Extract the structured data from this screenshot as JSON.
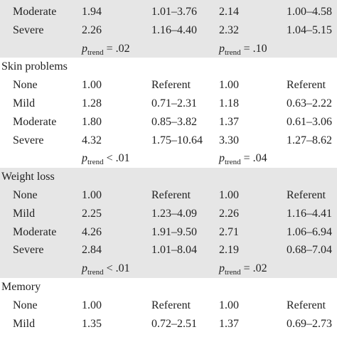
{
  "table": {
    "groups": [
      {
        "rows": [
          [
            "Moderate",
            "1.94",
            "1.01–3.76",
            "2.14",
            "1.00–4.58"
          ],
          [
            "Severe",
            "2.26",
            "1.16–4.40",
            "2.32",
            "1.04–5.15"
          ]
        ],
        "p_trend": [
          {
            "symbol": "p",
            "subscript": "trend",
            "relation": "= .02"
          },
          {
            "symbol": "p",
            "subscript": "trend",
            "relation": "= .10"
          }
        ]
      },
      {
        "title": "Skin problems",
        "rows": [
          [
            "None",
            "1.00",
            "Referent",
            "1.00",
            "Referent"
          ],
          [
            "Mild",
            "1.28",
            "0.71–2.31",
            "1.18",
            "0.63–2.22"
          ],
          [
            "Moderate",
            "1.80",
            "0.85–3.82",
            "1.37",
            "0.61–3.06"
          ],
          [
            "Severe",
            "4.32",
            "1.75–10.64",
            "3.30",
            "1.27–8.62"
          ]
        ],
        "p_trend": [
          {
            "symbol": "p",
            "subscript": "trend",
            "relation": "< .01"
          },
          {
            "symbol": "p",
            "subscript": "trend",
            "relation": "= .04"
          }
        ]
      },
      {
        "title": "Weight loss",
        "rows": [
          [
            "None",
            "1.00",
            "Referent",
            "1.00",
            "Referent"
          ],
          [
            "Mild",
            "2.25",
            "1.23–4.09",
            "2.26",
            "1.16–4.41"
          ],
          [
            "Moderate",
            "4.26",
            "1.91–9.50",
            "2.71",
            "1.06–6.94"
          ],
          [
            "Severe",
            "2.84",
            "1.01–8.04",
            "2.19",
            "0.68–7.04"
          ]
        ],
        "p_trend": [
          {
            "symbol": "p",
            "subscript": "trend",
            "relation": "< .01"
          },
          {
            "symbol": "p",
            "subscript": "trend",
            "relation": "= .02"
          }
        ]
      },
      {
        "title": "Memory",
        "rows": [
          [
            "None",
            "1.00",
            "Referent",
            "1.00",
            "Referent"
          ],
          [
            "Mild",
            "1.35",
            "0.72–2.51",
            "1.37",
            "0.69–2.73"
          ]
        ]
      }
    ]
  }
}
